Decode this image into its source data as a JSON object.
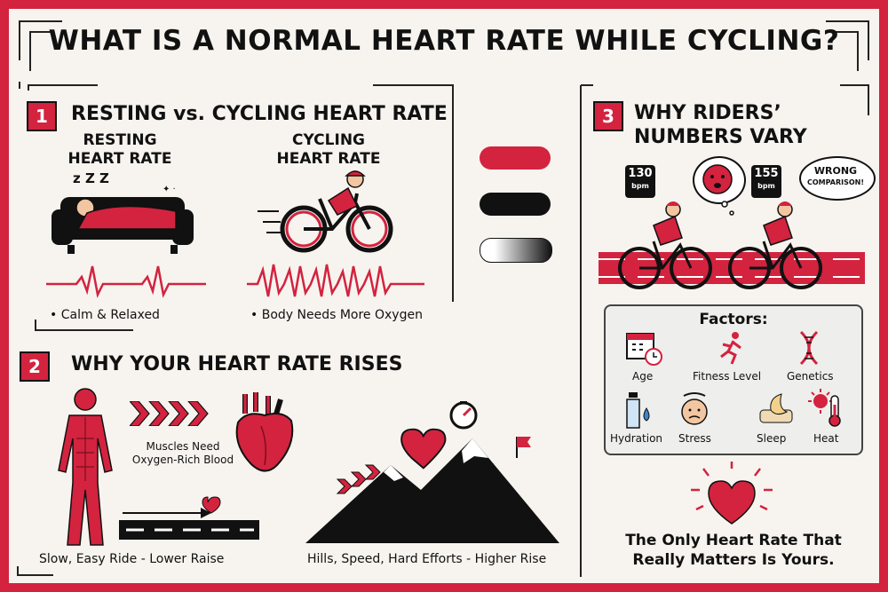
{
  "title": "WHAT IS A NORMAL HEART RATE WHILE CYCLING?",
  "section1": {
    "number": "1",
    "title": "RESTING vs. CYCLING HEART RATE",
    "resting_title_line1": "RESTING",
    "resting_title_line2": "HEART RATE",
    "cycling_title_line1": "CYCLING",
    "cycling_title_line2": "HEART RATE",
    "resting_caption": "• Calm & Relaxed",
    "cycling_caption": "• Body Needs More Oxygen",
    "sleep_text": "z Z Z"
  },
  "section2": {
    "number": "2",
    "title": "WHY YOUR HEART RATE RISES",
    "muscles_caption_line1": "Muscles Need",
    "muscles_caption_line2": "Oxygen-Rich Blood",
    "easy_caption": "Slow, Easy Ride - Lower Raise",
    "hard_caption": "Hills, Speed, Hard Efforts - Higher Rise"
  },
  "section3": {
    "number": "3",
    "title_line1": "WHY RIDERS’",
    "title_line2": "NUMBERS VARY",
    "rider1_bpm": "130",
    "rider2_bpm": "155",
    "bpm_unit": "bpm",
    "bubble_line1": "WRONG",
    "bubble_line2": "COMPARISON!",
    "factors_title": "Factors:",
    "factors": [
      "Age",
      "Fitness Level",
      "Genetics",
      "Hydration",
      "Stress",
      "Sleep",
      "Heat"
    ],
    "conclusion_line1": "The Only Heart Rate That",
    "conclusion_line2": "Really Matters Is Yours."
  },
  "colors": {
    "accent": "#d3233f",
    "dark": "#111111",
    "background": "#f7f4ef"
  }
}
